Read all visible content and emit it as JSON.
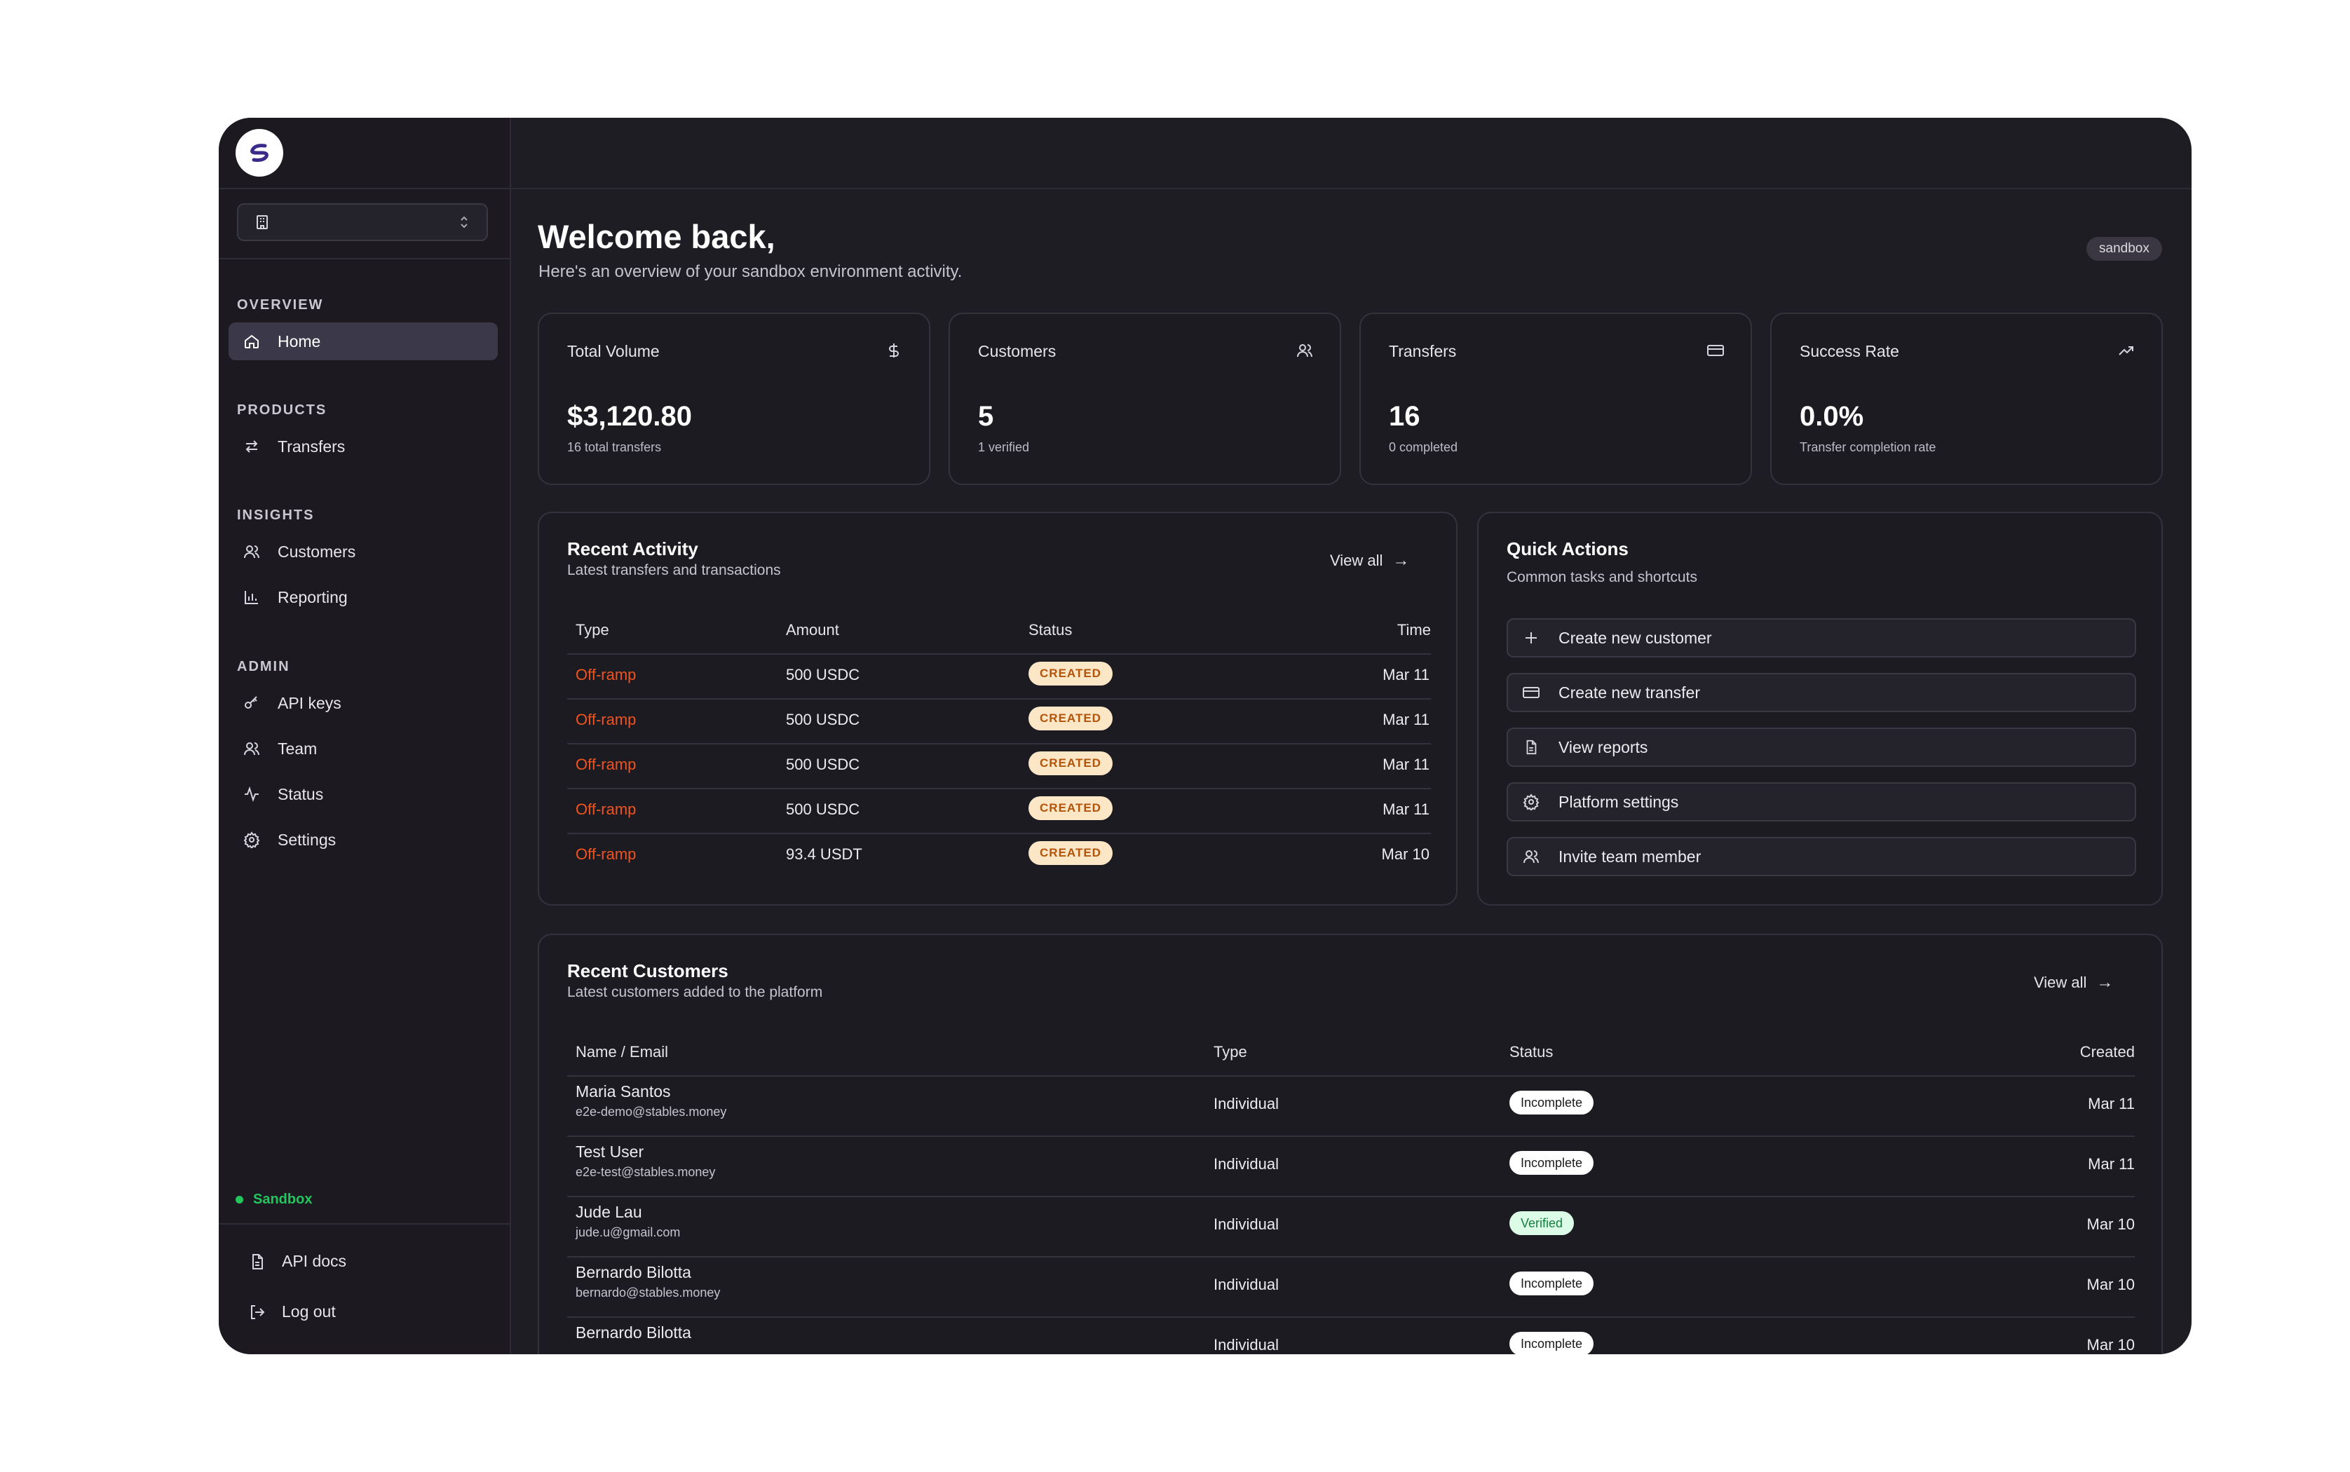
{
  "sidebar": {
    "sections": [
      {
        "title": "OVERVIEW",
        "items": [
          {
            "label": "Home",
            "icon": "home-icon",
            "active": true
          }
        ]
      },
      {
        "title": "PRODUCTS",
        "items": [
          {
            "label": "Transfers",
            "icon": "transfers-icon"
          }
        ]
      },
      {
        "title": "INSIGHTS",
        "items": [
          {
            "label": "Customers",
            "icon": "users-icon"
          },
          {
            "label": "Reporting",
            "icon": "bar-chart-icon"
          }
        ]
      },
      {
        "title": "ADMIN",
        "items": [
          {
            "label": "API keys",
            "icon": "key-icon"
          },
          {
            "label": "Team",
            "icon": "users-icon"
          },
          {
            "label": "Status",
            "icon": "activity-icon"
          },
          {
            "label": "Settings",
            "icon": "gear-icon"
          }
        ]
      }
    ],
    "environment": "Sandbox",
    "footer": [
      {
        "label": "API docs",
        "icon": "document-icon"
      },
      {
        "label": "Log out",
        "icon": "logout-icon"
      }
    ]
  },
  "header": {
    "title": "Welcome back,",
    "subtitle": "Here's an overview of your sandbox environment activity.",
    "badge": "sandbox"
  },
  "stats": [
    {
      "label": "Total Volume",
      "value": "$3,120.80",
      "sub": "16 total transfers",
      "icon": "dollar-icon"
    },
    {
      "label": "Customers",
      "value": "5",
      "sub": "1 verified",
      "icon": "users-icon"
    },
    {
      "label": "Transfers",
      "value": "16",
      "sub": "0 completed",
      "icon": "card-icon"
    },
    {
      "label": "Success Rate",
      "value": "0.0%",
      "sub": "Transfer completion rate",
      "icon": "trending-up-icon"
    }
  ],
  "recent_activity": {
    "title": "Recent Activity",
    "subtitle": "Latest transfers and transactions",
    "view_all": "View all",
    "columns": [
      "Type",
      "Amount",
      "Status",
      "Time"
    ],
    "rows": [
      {
        "type": "Off-ramp",
        "amount": "500 USDC",
        "status": "CREATED",
        "time": "Mar 11"
      },
      {
        "type": "Off-ramp",
        "amount": "500 USDC",
        "status": "CREATED",
        "time": "Mar 11"
      },
      {
        "type": "Off-ramp",
        "amount": "500 USDC",
        "status": "CREATED",
        "time": "Mar 11"
      },
      {
        "type": "Off-ramp",
        "amount": "500 USDC",
        "status": "CREATED",
        "time": "Mar 11"
      },
      {
        "type": "Off-ramp",
        "amount": "93.4 USDT",
        "status": "CREATED",
        "time": "Mar 10"
      }
    ]
  },
  "quick_actions": {
    "title": "Quick Actions",
    "subtitle": "Common tasks and shortcuts",
    "items": [
      {
        "label": "Create new customer",
        "icon": "plus-icon"
      },
      {
        "label": "Create new transfer",
        "icon": "card-icon"
      },
      {
        "label": "View reports",
        "icon": "document-icon"
      },
      {
        "label": "Platform settings",
        "icon": "gear-icon"
      },
      {
        "label": "Invite team member",
        "icon": "users-icon"
      }
    ]
  },
  "recent_customers": {
    "title": "Recent Customers",
    "subtitle": "Latest customers added to the platform",
    "view_all": "View all",
    "columns": [
      "Name / Email",
      "Type",
      "Status",
      "Created"
    ],
    "rows": [
      {
        "name": "Maria Santos",
        "email": "e2e-demo@stables.money",
        "type": "Individual",
        "status": "Incomplete",
        "created": "Mar 11"
      },
      {
        "name": "Test User",
        "email": "e2e-test@stables.money",
        "type": "Individual",
        "status": "Incomplete",
        "created": "Mar 11"
      },
      {
        "name": "Jude Lau",
        "email": "jude.u@gmail.com",
        "type": "Individual",
        "status": "Verified",
        "created": "Mar 10"
      },
      {
        "name": "Bernardo Bilotta",
        "email": "bernardo@stables.money",
        "type": "Individual",
        "status": "Incomplete",
        "created": "Mar 10"
      },
      {
        "name": "Bernardo Bilotta",
        "email": "",
        "type": "Individual",
        "status": "Incomplete",
        "created": "Mar 10"
      }
    ]
  },
  "colors": {
    "accent_orange": "#f0541e",
    "sandbox_green": "#22c55e",
    "created_badge_bg": "#fbe7c6",
    "verified_badge_bg": "#dcfce7"
  }
}
